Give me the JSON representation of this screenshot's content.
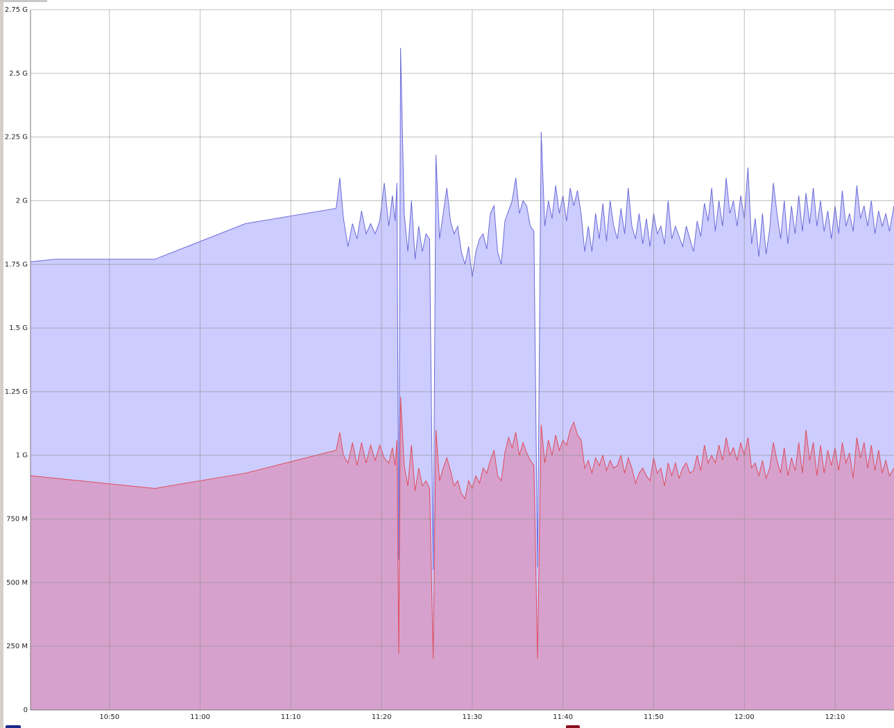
{
  "chart_data": {
    "type": "area",
    "x": [
      641.3,
      644,
      655,
      665,
      675,
      675.4,
      675.8,
      676.3,
      676.8,
      677.3,
      677.8,
      678.3,
      678.8,
      679.3,
      679.8,
      680.3,
      680.8,
      681.2,
      681.5,
      681.7,
      681.9,
      682.1,
      682.5,
      682.9,
      683.3,
      683.7,
      684.1,
      684.5,
      684.9,
      685.3,
      685.7,
      686.0,
      686.4,
      686.8,
      687.2,
      687.6,
      688.0,
      688.4,
      688.8,
      689.2,
      689.6,
      690.0,
      690.4,
      690.8,
      691.2,
      691.6,
      692.0,
      692.4,
      692.8,
      693.2,
      693.6,
      694.0,
      694.4,
      694.8,
      695.2,
      695.6,
      696.0,
      696.4,
      696.8,
      697.2,
      697.6,
      698.0,
      698.4,
      698.8,
      699.2,
      699.6,
      700.0,
      700.4,
      700.8,
      701.2,
      701.6,
      702.0,
      702.4,
      702.8,
      703.2,
      703.6,
      704.0,
      704.4,
      704.8,
      705.2,
      705.6,
      706.0,
      706.4,
      706.8,
      707.2,
      707.6,
      708.0,
      708.4,
      708.8,
      709.2,
      709.6,
      710.0,
      710.4,
      710.8,
      711.2,
      711.6,
      712.0,
      712.4,
      712.8,
      713.2,
      713.6,
      714.0,
      714.4,
      714.8,
      715.2,
      715.6,
      716.0,
      716.4,
      716.8,
      717.2,
      717.6,
      718.0,
      718.4,
      718.8,
      719.2,
      719.6,
      720.0,
      720.4,
      720.8,
      721.2,
      721.6,
      722.0,
      722.4,
      722.8,
      723.2,
      723.6,
      724.0,
      724.4,
      724.8,
      725.2,
      725.6,
      726.0,
      726.4,
      726.8,
      727.2,
      727.6,
      728.0,
      728.4,
      728.8,
      729.2,
      729.6,
      730.0,
      730.4,
      730.8,
      731.2,
      731.6,
      732.0,
      732.4,
      732.8,
      733.2,
      733.6,
      734.0,
      734.4,
      734.8,
      735.2,
      735.6,
      736.0,
      736.5
    ],
    "series": [
      {
        "color": "#6a6ad8",
        "fill": "#ccccff",
        "values": [
          1760000000.0,
          1770000000.0,
          1770000000.0,
          1910000000.0,
          1970000000.0,
          2090000000.0,
          1930000000.0,
          1820000000.0,
          1910000000.0,
          1850000000.0,
          1960000000.0,
          1870000000.0,
          1910000000.0,
          1870000000.0,
          1920000000.0,
          2070000000.0,
          1900000000.0,
          2020000000.0,
          1920000000.0,
          2070000000.0,
          590000000.0,
          2600000000.0,
          1950000000.0,
          1800000000.0,
          2000000000.0,
          1770000000.0,
          1900000000.0,
          1800000000.0,
          1870000000.0,
          1850000000.0,
          550000000.0,
          2180000000.0,
          1850000000.0,
          1950000000.0,
          2050000000.0,
          1920000000.0,
          1870000000.0,
          1900000000.0,
          1800000000.0,
          1750000000.0,
          1820000000.0,
          1700000000.0,
          1800000000.0,
          1850000000.0,
          1870000000.0,
          1810000000.0,
          1950000000.0,
          1980000000.0,
          1800000000.0,
          1750000000.0,
          1920000000.0,
          1960000000.0,
          2000000000.0,
          2090000000.0,
          1950000000.0,
          2000000000.0,
          1980000000.0,
          1900000000.0,
          1880000000.0,
          560000000.0,
          2270000000.0,
          1900000000.0,
          2000000000.0,
          1930000000.0,
          2060000000.0,
          1950000000.0,
          2020000000.0,
          1920000000.0,
          2050000000.0,
          1980000000.0,
          2040000000.0,
          1950000000.0,
          1800000000.0,
          1900000000.0,
          1800000000.0,
          1950000000.0,
          1850000000.0,
          1990000000.0,
          1840000000.0,
          2000000000.0,
          1900000000.0,
          1850000000.0,
          1970000000.0,
          1870000000.0,
          2050000000.0,
          1900000000.0,
          1850000000.0,
          1950000000.0,
          1830000000.0,
          1930000000.0,
          1820000000.0,
          1950000000.0,
          1870000000.0,
          1900000000.0,
          1830000000.0,
          2000000000.0,
          1850000000.0,
          1900000000.0,
          1860000000.0,
          1820000000.0,
          1900000000.0,
          1850000000.0,
          1800000000.0,
          1920000000.0,
          1860000000.0,
          1990000000.0,
          1920000000.0,
          2050000000.0,
          1880000000.0,
          2000000000.0,
          1900000000.0,
          2090000000.0,
          1950000000.0,
          2000000000.0,
          1900000000.0,
          2020000000.0,
          1930000000.0,
          2130000000.0,
          1830000000.0,
          1930000000.0,
          1780000000.0,
          1950000000.0,
          1790000000.0,
          1890000000.0,
          2070000000.0,
          1950000000.0,
          1850000000.0,
          2000000000.0,
          1830000000.0,
          1980000000.0,
          1870000000.0,
          2020000000.0,
          1880000000.0,
          2030000000.0,
          1910000000.0,
          2050000000.0,
          1900000000.0,
          2000000000.0,
          1880000000.0,
          1960000000.0,
          1850000000.0,
          1980000000.0,
          1870000000.0,
          2040000000.0,
          1900000000.0,
          1950000000.0,
          1880000000.0,
          2060000000.0,
          1930000000.0,
          1980000000.0,
          1900000000.0,
          2000000000.0,
          1870000000.0,
          1960000000.0,
          1900000000.0,
          1950000000.0,
          1880000000.0,
          1980000000.0
        ]
      },
      {
        "color": "#e04a5a",
        "fill": "#d6a2cd",
        "values": [
          920000000.0,
          910000000.0,
          870000000.0,
          930000000.0,
          1020000000.0,
          1090000000.0,
          1000000000.0,
          970000000.0,
          1050000000.0,
          960000000.0,
          1050000000.0,
          970000000.0,
          1040000000.0,
          980000000.0,
          1040000000.0,
          990000000.0,
          970000000.0,
          1030000000.0,
          960000000.0,
          1060000000.0,
          220000000.0,
          1230000000.0,
          960000000.0,
          880000000.0,
          1040000000.0,
          860000000.0,
          950000000.0,
          880000000.0,
          900000000.0,
          870000000.0,
          200000000.0,
          1100000000.0,
          900000000.0,
          950000000.0,
          990000000.0,
          940000000.0,
          880000000.0,
          900000000.0,
          850000000.0,
          830000000.0,
          900000000.0,
          870000000.0,
          920000000.0,
          890000000.0,
          950000000.0,
          930000000.0,
          980000000.0,
          1020000000.0,
          920000000.0,
          900000000.0,
          1010000000.0,
          1070000000.0,
          1030000000.0,
          1090000000.0,
          1000000000.0,
          1050000000.0,
          1010000000.0,
          980000000.0,
          960000000.0,
          200000000.0,
          1120000000.0,
          970000000.0,
          1060000000.0,
          1000000000.0,
          1080000000.0,
          1020000000.0,
          1060000000.0,
          1040000000.0,
          1100000000.0,
          1130000000.0,
          1080000000.0,
          1060000000.0,
          950000000.0,
          980000000.0,
          930000000.0,
          990000000.0,
          960000000.0,
          1000000000.0,
          940000000.0,
          980000000.0,
          950000000.0,
          960000000.0,
          1000000000.0,
          930000000.0,
          990000000.0,
          950000000.0,
          890000000.0,
          930000000.0,
          950000000.0,
          920000000.0,
          900000000.0,
          990000000.0,
          930000000.0,
          950000000.0,
          880000000.0,
          970000000.0,
          920000000.0,
          970000000.0,
          910000000.0,
          950000000.0,
          970000000.0,
          930000000.0,
          940000000.0,
          1000000000.0,
          940000000.0,
          1040000000.0,
          970000000.0,
          1000000000.0,
          970000000.0,
          1040000000.0,
          980000000.0,
          1070000000.0,
          1000000000.0,
          1030000000.0,
          980000000.0,
          1050000000.0,
          1000000000.0,
          1070000000.0,
          950000000.0,
          970000000.0,
          920000000.0,
          980000000.0,
          910000000.0,
          950000000.0,
          1050000000.0,
          980000000.0,
          930000000.0,
          1030000000.0,
          920000000.0,
          990000000.0,
          940000000.0,
          1050000000.0,
          930000000.0,
          1100000000.0,
          980000000.0,
          1050000000.0,
          920000000.0,
          1040000000.0,
          930000000.0,
          1020000000.0,
          960000000.0,
          1030000000.0,
          940000000.0,
          1050000000.0,
          970000000.0,
          1010000000.0,
          910000000.0,
          1070000000.0,
          990000000.0,
          1050000000.0,
          950000000.0,
          1040000000.0,
          940000000.0,
          1020000000.0,
          930000000.0,
          980000000.0,
          920000000.0,
          950000000.0
        ]
      }
    ],
    "xlim": [
      641.3,
      736.5
    ],
    "xticks": [
      {
        "value": 650,
        "label": "10:50"
      },
      {
        "value": 660,
        "label": "11:00"
      },
      {
        "value": 670,
        "label": "11:10"
      },
      {
        "value": 680,
        "label": "11:20"
      },
      {
        "value": 690,
        "label": "11:30"
      },
      {
        "value": 700,
        "label": "11:40"
      },
      {
        "value": 710,
        "label": "11:50"
      },
      {
        "value": 720,
        "label": "12:00"
      },
      {
        "value": 730,
        "label": "12:10"
      }
    ],
    "ylim": [
      0,
      2750000000
    ],
    "yticks": [
      0,
      {
        "value": 250000000,
        "label": "250 M"
      },
      {
        "value": 500000000,
        "label": "500 M"
      },
      {
        "value": 750000000,
        "label": "750 M"
      },
      {
        "value": 1000000000,
        "label": "1 G"
      },
      {
        "value": 1250000000,
        "label": "1.25 G"
      },
      {
        "value": 1500000000,
        "label": "1.5 G"
      },
      {
        "value": 1750000000,
        "label": "1.75 G"
      },
      {
        "value": 2000000000,
        "label": "2 G"
      },
      {
        "value": 2250000000,
        "label": "2.25 G"
      },
      {
        "value": 2500000000,
        "label": "2.5 G"
      },
      {
        "value": 2750000000,
        "label": "2.75 G"
      }
    ],
    "grid": true
  }
}
